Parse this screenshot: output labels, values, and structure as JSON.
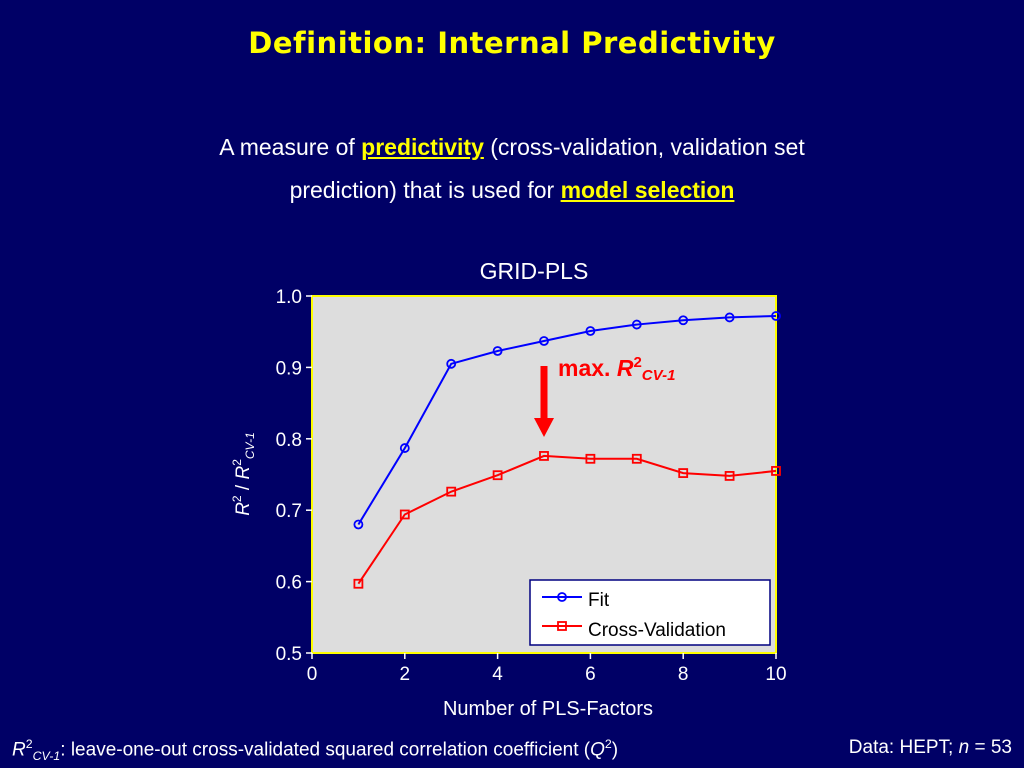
{
  "slide": {
    "title": "Definition: Internal Predictivity",
    "intro_part1": "A measure of ",
    "intro_highlight1": "predictivity",
    "intro_part2": " (cross-validation, validation set",
    "intro_line2_part1": "prediction) that is used for ",
    "intro_highlight2": "model selection",
    "footnote": {
      "r": "R",
      "sup": "2",
      "sub": "CV-1",
      "text": ": leave-one-out cross-validated squared correlation coefficient (",
      "q": "Q",
      "q_sup": "2",
      "close": ")"
    },
    "source": {
      "label": "Data: HEPT; ",
      "n": "n",
      "eq": " = 53"
    }
  },
  "chart_data": {
    "type": "line",
    "title": "GRID-PLS",
    "xlabel": "Number of PLS-Factors",
    "ylabel_parts": [
      "R",
      "2",
      " / ",
      "R",
      "2",
      "CV-1"
    ],
    "xlim": [
      0,
      10
    ],
    "ylim": [
      0.5,
      1.0
    ],
    "x_ticks": [
      "0",
      "2",
      "4",
      "6",
      "8",
      "10"
    ],
    "y_ticks": [
      "0.5",
      "0.6",
      "0.7",
      "0.8",
      "0.9",
      "1.0"
    ],
    "x": [
      1,
      2,
      3,
      4,
      5,
      6,
      7,
      8,
      9,
      10
    ],
    "series": [
      {
        "name": "Fit",
        "color": "#0000ff",
        "marker": "circle",
        "values": [
          0.68,
          0.787,
          0.905,
          0.923,
          0.937,
          0.951,
          0.96,
          0.966,
          0.97,
          0.972
        ]
      },
      {
        "name": "Cross-Validation",
        "color": "#ff0000",
        "marker": "square",
        "values": [
          0.597,
          0.694,
          0.726,
          0.749,
          0.776,
          0.772,
          0.772,
          0.752,
          0.748,
          0.755
        ]
      }
    ],
    "annotation": {
      "prefix": "max. ",
      "r": "R",
      "sup": "2",
      "sub": "CV-1",
      "color": "#ff0000",
      "x": 5
    },
    "plot_background": "#dddddd",
    "frame_color": "#ffff00",
    "legend_position": "bottom-right"
  }
}
